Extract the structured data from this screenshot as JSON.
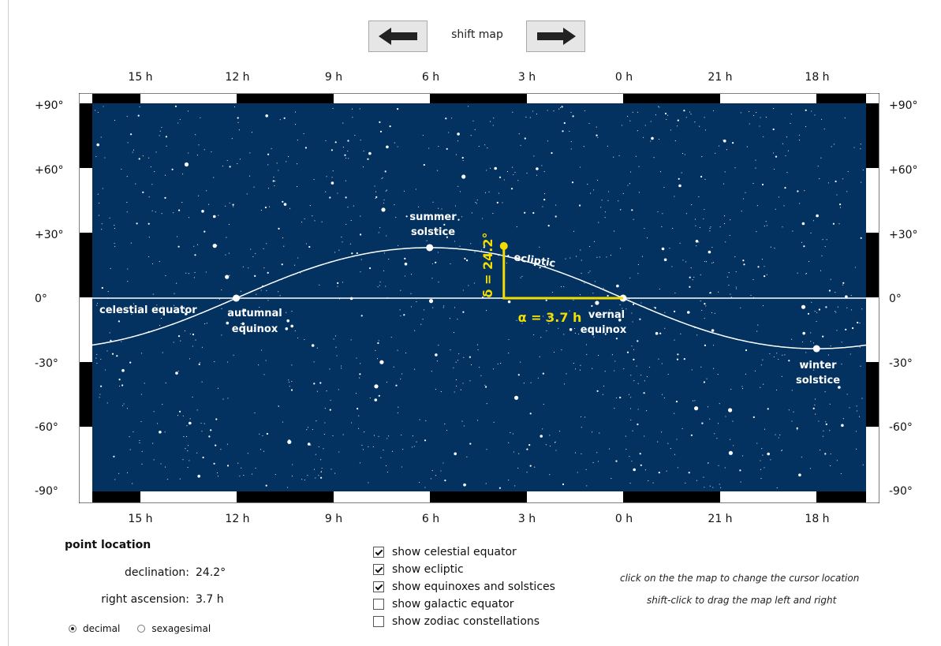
{
  "shift": {
    "label": "shift map",
    "left_icon": "arrow-left-icon",
    "right_icon": "arrow-right-icon"
  },
  "ra_ticks": [
    "15 h",
    "12 h",
    "9 h",
    "6 h",
    "3 h",
    "0 h",
    "21 h",
    "18 h"
  ],
  "dec_ticks": [
    "+90°",
    "+60°",
    "+30°",
    "0°",
    "-30°",
    "-60°",
    "-90°"
  ],
  "map": {
    "labels": {
      "celestial_equator": "celestial equator",
      "ecliptic": "ecliptic",
      "summer_1": "summer",
      "summer_2": "solstice",
      "autumnal_1": "autumnal",
      "autumnal_2": "equinox",
      "vernal_1": "vernal",
      "vernal_2": "equinox",
      "winter_1": "winter",
      "winter_2": "solstice"
    },
    "alpha_label": "α = 3.7 h",
    "delta_label": "δ = 24.2°",
    "colors": {
      "sky": "#033260",
      "star": "#ffffff",
      "cursor": "#f3dd00",
      "frame_dark": "#000000",
      "frame_light": "#ffffff"
    },
    "cursor": {
      "ra_hours": 3.7,
      "dec_degrees": 24.2
    },
    "obliquity_degrees": 23.44
  },
  "location": {
    "title": "point location",
    "declination_label": "declination:",
    "declination_value": "24.2°",
    "ra_label": "right ascension:",
    "ra_value": "3.7 h",
    "format_options": [
      "decimal",
      "sexagesimal"
    ],
    "format_selected": "decimal"
  },
  "options": [
    {
      "label": "show celestial equator",
      "checked": true
    },
    {
      "label": "show ecliptic",
      "checked": true
    },
    {
      "label": "show equinoxes and solstices",
      "checked": true
    },
    {
      "label": "show galactic equator",
      "checked": false
    },
    {
      "label": "show zodiac constellations",
      "checked": false
    }
  ],
  "hints": {
    "click": "click on the the map to change the cursor location",
    "shift": "shift-click to drag the map left and right"
  }
}
